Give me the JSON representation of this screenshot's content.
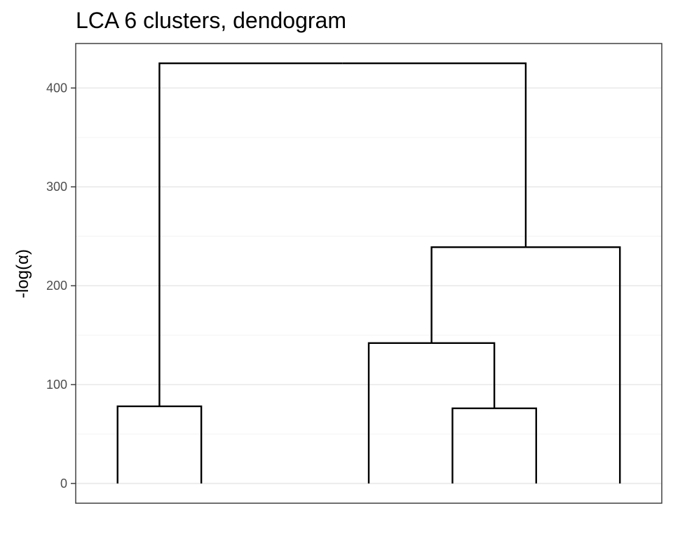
{
  "chart_data": {
    "type": "dendrogram",
    "title": "LCA 6 clusters, dendogram",
    "xlabel": "",
    "ylabel": "-log(α)",
    "ylim": [
      -20,
      445
    ],
    "yticks": [
      0,
      100,
      200,
      300,
      400
    ],
    "ytick_labels": [
      "0",
      "100",
      "200",
      "300",
      "400"
    ],
    "grid": true,
    "n_leaves": 6,
    "merges": [
      {
        "left": 1,
        "right": 2,
        "height": 78
      },
      {
        "left": 5,
        "right": 6,
        "height": 76
      },
      {
        "left": 4,
        "right": 5.5,
        "height": 142
      },
      {
        "left": 4.75,
        "right": 7,
        "height": 239
      },
      {
        "left": 1.5,
        "right": 5.875,
        "height": 425
      }
    ],
    "nodes": [
      {
        "x": 1,
        "height": 0
      },
      {
        "x": 2,
        "height": 0
      },
      {
        "x": 4,
        "height": 0
      },
      {
        "x": 5,
        "height": 0
      },
      {
        "x": 6,
        "height": 0
      },
      {
        "x": 7,
        "height": 0
      },
      {
        "x": 1.5,
        "height": 78
      },
      {
        "x": 5.5,
        "height": 76
      },
      {
        "x": 4.75,
        "height": 142
      },
      {
        "x": 5.875,
        "height": 239
      },
      {
        "x": 3.6875,
        "height": 425
      }
    ],
    "links": [
      [
        6,
        0
      ],
      [
        6,
        1
      ],
      [
        7,
        3
      ],
      [
        7,
        4
      ],
      [
        8,
        2
      ],
      [
        8,
        7
      ],
      [
        9,
        8
      ],
      [
        9,
        5
      ],
      [
        10,
        6
      ],
      [
        10,
        9
      ]
    ],
    "xlim": [
      0.5,
      7.5
    ]
  }
}
